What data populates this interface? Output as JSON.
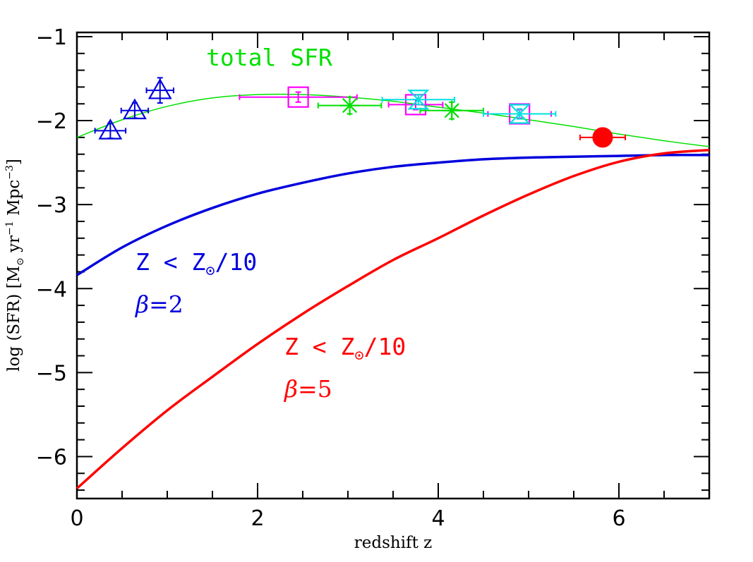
{
  "chart_data": {
    "type": "scatter",
    "xlabel": "redshift z",
    "ylabel_parts": {
      "pre": "log (SFR) [M",
      "sun": "⊙",
      "mid": " yr",
      "exp1": "−1",
      "mid2": " Mpc",
      "exp2": "−3",
      "post": "]"
    },
    "xlim": [
      0,
      7
    ],
    "ylim": [
      -6.5,
      -0.95
    ],
    "y_inverted": true,
    "grid": false,
    "x_ticks": [
      0,
      2,
      4,
      6
    ],
    "x_tick_labels": [
      "0",
      "2",
      "4",
      "6"
    ],
    "y_ticks": [
      -1,
      -2,
      -3,
      -4,
      -5,
      -6
    ],
    "y_tick_labels": [
      "−1",
      "−2",
      "−3",
      "−4",
      "−5",
      "−6"
    ],
    "annotations": [
      {
        "id": "total",
        "text": "total SFR",
        "color": "#00e000"
      },
      {
        "id": "blue-z",
        "z": "Z",
        "lt": " < ",
        "zsun": "Z",
        "sun": "⊙",
        "frac": "/10",
        "color": "#0000dd"
      },
      {
        "id": "blue-beta",
        "sym": "β",
        "rest": "=2",
        "color": "#0000dd"
      },
      {
        "id": "red-z",
        "z": "Z",
        "lt": " < ",
        "zsun": "Z",
        "sun": "⊙",
        "frac": "/10",
        "color": "#ff0000"
      },
      {
        "id": "red-beta",
        "sym": "β",
        "rest": "=5",
        "color": "#ff0000"
      }
    ],
    "series": [
      {
        "role": "total SFR fit",
        "color": "#00e000",
        "kind": "line",
        "x": [
          0,
          0.5,
          1,
          1.5,
          2,
          2.5,
          3,
          3.5,
          4,
          4.5,
          5,
          5.5,
          6,
          6.5,
          7
        ],
        "y": [
          -2.2,
          -1.99,
          -1.83,
          -1.73,
          -1.69,
          -1.69,
          -1.72,
          -1.77,
          -1.84,
          -1.91,
          -1.99,
          -2.07,
          -2.16,
          -2.24,
          -2.31
        ]
      },
      {
        "label": "Z < Z⊙/10, β=2",
        "color": "#0000dd",
        "kind": "line",
        "x": [
          0,
          0.5,
          1,
          1.5,
          2,
          2.5,
          3,
          3.5,
          4,
          4.5,
          5,
          5.5,
          6,
          6.5,
          7
        ],
        "y": [
          -3.84,
          -3.51,
          -3.25,
          -3.04,
          -2.87,
          -2.74,
          -2.63,
          -2.55,
          -2.5,
          -2.46,
          -2.44,
          -2.43,
          -2.42,
          -2.41,
          -2.41
        ]
      },
      {
        "label": "Z < Z⊙/10, β=5",
        "color": "#ff0000",
        "kind": "line",
        "x": [
          0,
          0.5,
          1,
          1.5,
          2,
          2.5,
          3,
          3.5,
          4,
          4.5,
          5,
          5.5,
          6,
          6.5,
          7
        ],
        "y": [
          -6.38,
          -5.9,
          -5.45,
          -5.05,
          -4.66,
          -4.3,
          -3.97,
          -3.66,
          -3.4,
          -3.13,
          -2.88,
          -2.66,
          -2.49,
          -2.39,
          -2.35
        ]
      },
      {
        "role": "triangles",
        "color": "#0000dd",
        "kind": "points",
        "marker": "triangle",
        "points": [
          {
            "x": 0.37,
            "y": -2.12,
            "xerr": 0.17,
            "yerr": 0.09
          },
          {
            "x": 0.64,
            "y": -1.88,
            "xerr": 0.15,
            "yerr": 0.09
          },
          {
            "x": 0.92,
            "y": -1.64,
            "xerr": 0.15,
            "yerr": 0.15
          }
        ]
      },
      {
        "role": "squares",
        "color": "#ff00ff",
        "kind": "points",
        "marker": "square",
        "points": [
          {
            "x": 2.45,
            "y": -1.72,
            "xerr": 0.65,
            "yerr": 0.06
          },
          {
            "x": 3.75,
            "y": -1.81,
            "xerr": 0.3,
            "yerr": 0.06
          },
          {
            "x": 4.9,
            "y": -1.92,
            "xerr": 0.35,
            "yerr": 0.05
          }
        ]
      },
      {
        "role": "asterisks",
        "color": "#00e000",
        "kind": "points",
        "marker": "asterisk",
        "points": [
          {
            "x": 3.02,
            "y": -1.82,
            "xerr": 0.35,
            "yerr": 0.1
          },
          {
            "x": 4.15,
            "y": -1.88,
            "xerr": 0.35,
            "yerr": 0.1
          }
        ]
      },
      {
        "role": "bowties",
        "color": "#00e0e0",
        "kind": "points",
        "marker": "bowtie",
        "points": [
          {
            "x": 3.78,
            "y": -1.75,
            "xerr": 0.4,
            "yerr": 0.06
          },
          {
            "x": 4.9,
            "y": -1.92,
            "xerr": 0.4,
            "yerr": 0.06
          }
        ]
      },
      {
        "role": "circle",
        "color": "#ff0000",
        "kind": "points",
        "marker": "circle",
        "points": [
          {
            "x": 5.82,
            "y": -2.2,
            "xerr": 0.25,
            "yerr": 0.0
          }
        ]
      }
    ]
  }
}
